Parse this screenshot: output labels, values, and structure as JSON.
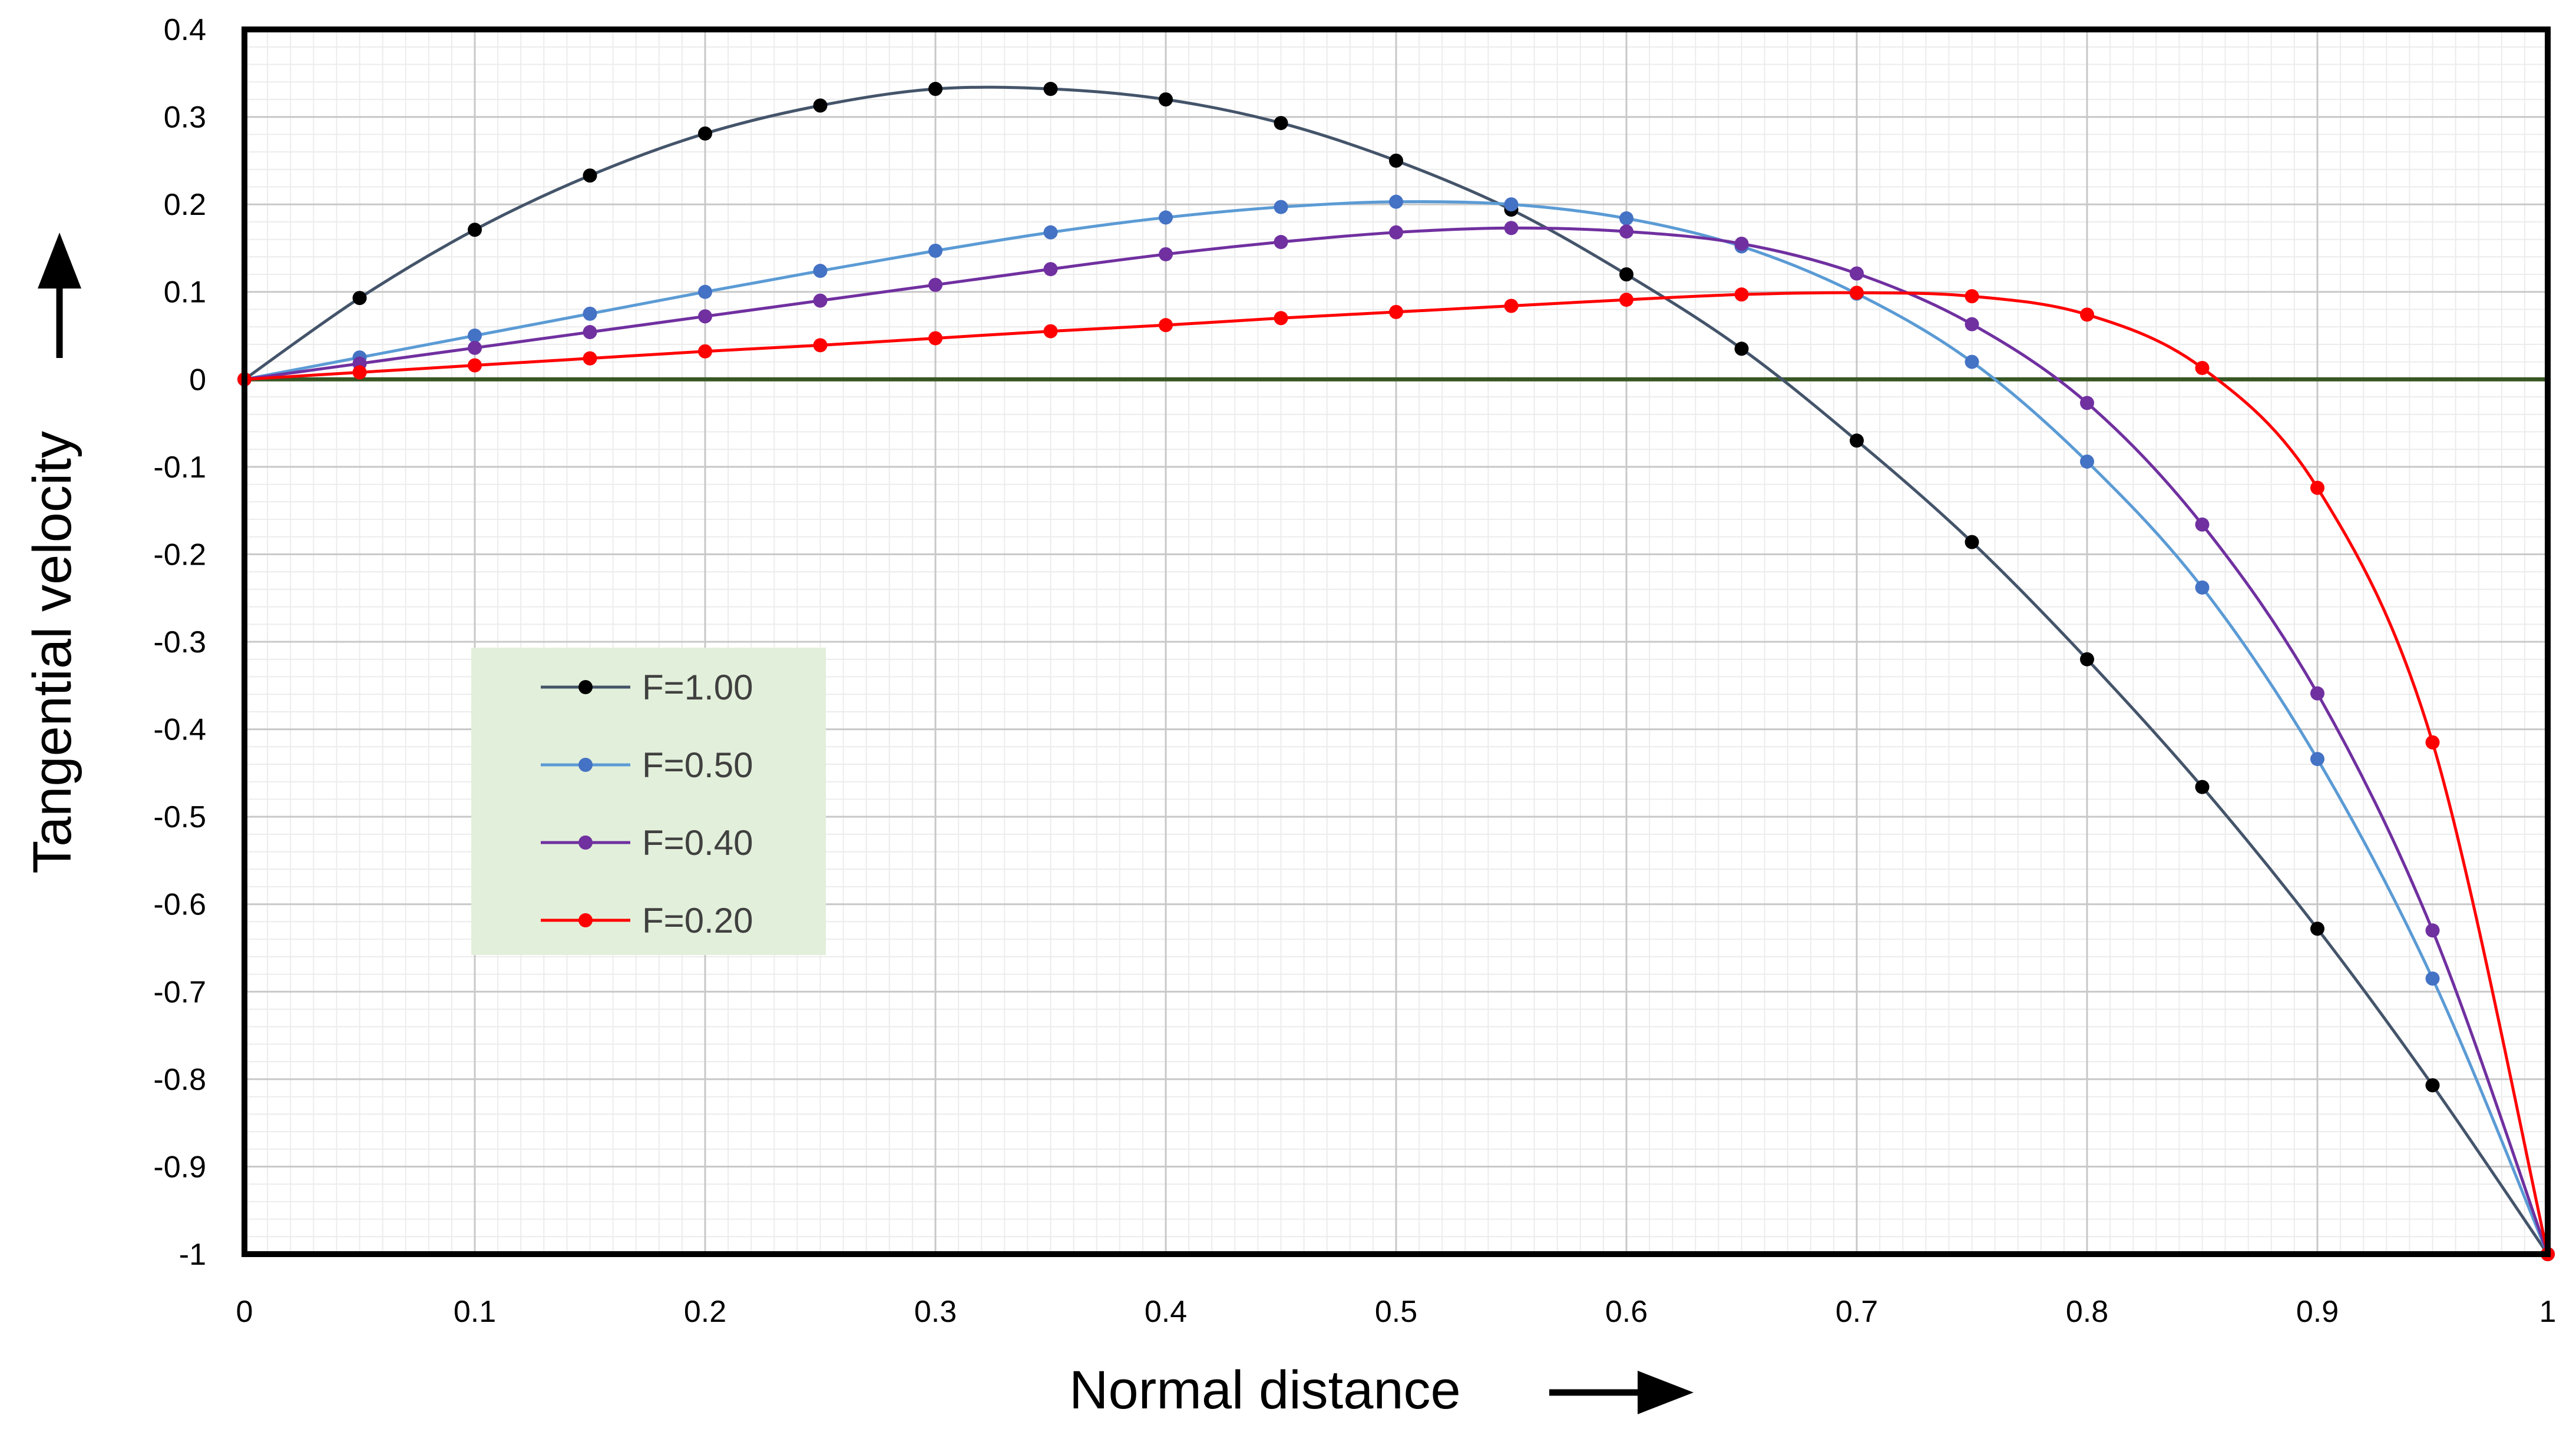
{
  "chart_data": {
    "type": "line",
    "title": "",
    "xlabel": "Normal distance",
    "ylabel": "Tangential velocity",
    "xlim": [
      0,
      1
    ],
    "ylim": [
      -1,
      0.4
    ],
    "x_ticks": [
      "0",
      "0.1",
      "0.2",
      "0.3",
      "0.4",
      "0.5",
      "0.6",
      "0.7",
      "0.8",
      "0.9",
      "1"
    ],
    "y_ticks": [
      "0.4",
      "0.3",
      "0.2",
      "0.1",
      "0",
      "-0.1",
      "-0.2",
      "-0.3",
      "-0.4",
      "-0.5",
      "-0.6",
      "-0.7",
      "-0.8",
      "-0.9",
      "-1"
    ],
    "grid": true,
    "legend_position": "middle-left",
    "x": [
      0,
      0.05,
      0.1,
      0.15,
      0.2,
      0.25,
      0.3,
      0.35,
      0.4,
      0.45,
      0.5,
      0.55,
      0.6,
      0.65,
      0.7,
      0.75,
      0.8,
      0.85,
      0.9,
      0.95,
      1
    ],
    "series": [
      {
        "name": "F=1.00",
        "color": "#44546A",
        "marker_color": "#000000",
        "values": [
          0,
          0.093,
          0.171,
          0.233,
          0.281,
          0.313,
          0.332,
          0.332,
          0.32,
          0.293,
          0.25,
          0.194,
          0.12,
          0.035,
          -0.07,
          -0.186,
          -0.32,
          -0.466,
          -0.628,
          -0.807,
          -1
        ]
      },
      {
        "name": "F=0.50",
        "color": "#5B9BD5",
        "marker_color": "#4472C4",
        "values": [
          0,
          0.025,
          0.05,
          0.075,
          0.1,
          0.124,
          0.147,
          0.168,
          0.185,
          0.197,
          0.203,
          0.2,
          0.184,
          0.152,
          0.098,
          0.02,
          -0.094,
          -0.238,
          -0.434,
          -0.685,
          -1
        ]
      },
      {
        "name": "F=0.40",
        "color": "#7030A0",
        "marker_color": "#7030A0",
        "values": [
          0,
          0.018,
          0.036,
          0.054,
          0.072,
          0.09,
          0.108,
          0.126,
          0.143,
          0.157,
          0.168,
          0.173,
          0.169,
          0.155,
          0.121,
          0.063,
          -0.027,
          -0.166,
          -0.359,
          -0.63,
          -1
        ]
      },
      {
        "name": "F=0.20",
        "color": "#FF0000",
        "marker_color": "#FF0000",
        "values": [
          0,
          0.008,
          0.016,
          0.024,
          0.032,
          0.039,
          0.047,
          0.055,
          0.062,
          0.07,
          0.077,
          0.084,
          0.091,
          0.097,
          0.099,
          0.095,
          0.074,
          0.013,
          -0.124,
          -0.415,
          -1
        ]
      }
    ]
  }
}
